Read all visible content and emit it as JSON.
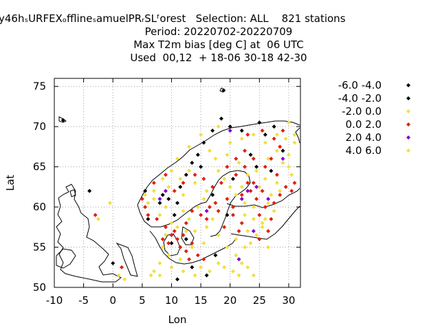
{
  "header": {
    "line1": "y46hₛURFEXₒfflineₛamuelPRᵣSLᶠorest   Selection: ALL    821 stations",
    "line2": "Period: 20220702-20220709",
    "line3": "Max T2m bias [deg C] at  06 UTC",
    "line4": "Used  00,12  + 18-06 30-18 42-30"
  },
  "chart_data": {
    "type": "scatter",
    "xlabel": "Lon",
    "ylabel": "Lat",
    "xlim": [
      -10,
      32
    ],
    "ylim": [
      50,
      76
    ],
    "xticks": [
      -10,
      -5,
      0,
      5,
      10,
      15,
      20,
      25,
      30
    ],
    "yticks": [
      50,
      55,
      60,
      65,
      70,
      75
    ],
    "grid": true,
    "legend_position": "top-right outside",
    "series": [
      {
        "name": "-6.0 -4.0",
        "color": "#000000",
        "points": [
          [
            18.9,
            74.5
          ],
          [
            18.5,
            71.0
          ]
        ]
      },
      {
        "name": "-4.0 -2.0",
        "color": "#000000",
        "points": [
          [
            8.5,
            61.5
          ],
          [
            8.0,
            60.5
          ],
          [
            9.5,
            61.0
          ],
          [
            11.5,
            62.5
          ],
          [
            12.5,
            64.0
          ],
          [
            13.5,
            65.5
          ],
          [
            14.5,
            66.5
          ],
          [
            15.5,
            68.0
          ],
          [
            17.0,
            69.5
          ],
          [
            20.0,
            70.0
          ],
          [
            22.0,
            69.5
          ],
          [
            25.0,
            70.5
          ],
          [
            26.0,
            69.0
          ],
          [
            27.5,
            70.0
          ],
          [
            29.0,
            67.0
          ],
          [
            24.5,
            65.0
          ],
          [
            11.0,
            60.5
          ],
          [
            10.5,
            59.0
          ],
          [
            12.5,
            56.0
          ],
          [
            10.0,
            55.5
          ],
          [
            13.5,
            52.5
          ],
          [
            16.0,
            51.5
          ],
          [
            11.0,
            51.0
          ],
          [
            17.5,
            54.0
          ],
          [
            -8.5,
            70.8
          ],
          [
            0.0,
            53.0
          ],
          [
            -4.0,
            62.0
          ],
          [
            17.0,
            61.5
          ],
          [
            19.5,
            59.0
          ],
          [
            20.5,
            63.5
          ],
          [
            27.0,
            64.5
          ],
          [
            23.5,
            66.5
          ],
          [
            15.0,
            65.0
          ],
          [
            6.0,
            58.5
          ],
          [
            5.5,
            62.0
          ]
        ]
      },
      {
        "name": "-2.0 0.0",
        "color": "#f0e040",
        "points": [
          [
            7.0,
            62.0
          ],
          [
            8.5,
            63.5
          ],
          [
            10.0,
            64.5
          ],
          [
            11.0,
            66.0
          ],
          [
            13.0,
            67.5
          ],
          [
            15.0,
            69.0
          ],
          [
            18.0,
            70.0
          ],
          [
            20.0,
            68.0
          ],
          [
            22.0,
            68.5
          ],
          [
            24.0,
            69.0
          ],
          [
            26.0,
            68.0
          ],
          [
            28.0,
            69.0
          ],
          [
            30.0,
            70.5
          ],
          [
            31.0,
            69.0
          ],
          [
            29.0,
            65.5
          ],
          [
            30.5,
            64.0
          ],
          [
            28.5,
            62.0
          ],
          [
            26.5,
            60.5
          ],
          [
            24.0,
            60.0
          ],
          [
            22.5,
            60.5
          ],
          [
            21.0,
            61.5
          ],
          [
            20.0,
            62.5
          ],
          [
            19.0,
            63.5
          ],
          [
            18.0,
            64.5
          ],
          [
            17.5,
            66.0
          ],
          [
            16.5,
            67.0
          ],
          [
            19.5,
            66.5
          ],
          [
            21.5,
            65.5
          ],
          [
            23.0,
            64.0
          ],
          [
            25.0,
            62.5
          ],
          [
            26.0,
            63.5
          ],
          [
            27.0,
            61.5
          ],
          [
            17.0,
            58.5
          ],
          [
            16.0,
            57.5
          ],
          [
            14.0,
            57.0
          ],
          [
            13.0,
            58.5
          ],
          [
            12.0,
            59.5
          ],
          [
            8.0,
            59.0
          ],
          [
            6.0,
            60.5
          ],
          [
            5.5,
            61.5
          ],
          [
            7.0,
            61.0
          ],
          [
            9.0,
            60.0
          ],
          [
            10.0,
            58.0
          ],
          [
            9.0,
            56.5
          ],
          [
            8.5,
            55.0
          ],
          [
            9.5,
            54.0
          ],
          [
            8.0,
            53.0
          ],
          [
            7.0,
            52.0
          ],
          [
            6.5,
            51.5
          ],
          [
            8.0,
            51.5
          ],
          [
            10.0,
            52.5
          ],
          [
            11.5,
            53.5
          ],
          [
            12.0,
            52.0
          ],
          [
            14.0,
            51.5
          ],
          [
            15.0,
            52.5
          ],
          [
            16.5,
            52.0
          ],
          [
            18.0,
            53.0
          ],
          [
            19.0,
            52.5
          ],
          [
            20.5,
            52.0
          ],
          [
            21.0,
            54.0
          ],
          [
            22.0,
            53.0
          ],
          [
            23.0,
            52.5
          ],
          [
            24.0,
            51.5
          ],
          [
            21.5,
            51.5
          ],
          [
            19.5,
            55.0
          ],
          [
            21.0,
            56.0
          ],
          [
            23.0,
            57.0
          ],
          [
            24.5,
            56.5
          ],
          [
            25.5,
            57.5
          ],
          [
            26.0,
            58.5
          ],
          [
            24.0,
            58.5
          ],
          [
            22.5,
            59.0
          ],
          [
            1.0,
            51.5
          ],
          [
            2.0,
            51.0
          ],
          [
            -0.5,
            60.5
          ],
          [
            -2.5,
            58.5
          ],
          [
            14.5,
            60.0
          ],
          [
            15.5,
            61.0
          ],
          [
            16.0,
            62.0
          ],
          [
            14.0,
            63.0
          ],
          [
            12.0,
            61.5
          ],
          [
            13.0,
            64.5
          ],
          [
            11.5,
            63.5
          ],
          [
            9.5,
            62.5
          ],
          [
            22.0,
            62.5
          ],
          [
            24.5,
            64.5
          ],
          [
            26.5,
            66.0
          ],
          [
            28.0,
            67.0
          ],
          [
            30.0,
            66.5
          ],
          [
            31.0,
            68.0
          ],
          [
            29.5,
            68.5
          ],
          [
            18.0,
            56.5
          ],
          [
            15.5,
            55.5
          ],
          [
            13.5,
            55.0
          ],
          [
            11.0,
            57.5
          ],
          [
            12.5,
            57.0
          ]
        ]
      },
      {
        "name": "0.0 2.0",
        "color": "#e02010",
        "points": [
          [
            5.0,
            61.0
          ],
          [
            5.5,
            60.0
          ],
          [
            6.0,
            59.0
          ],
          [
            7.5,
            58.5
          ],
          [
            7.0,
            63.0
          ],
          [
            9.0,
            64.0
          ],
          [
            10.5,
            62.0
          ],
          [
            12.0,
            63.0
          ],
          [
            14.0,
            64.0
          ],
          [
            15.5,
            63.5
          ],
          [
            17.0,
            62.5
          ],
          [
            18.5,
            63.0
          ],
          [
            19.5,
            61.0
          ],
          [
            20.5,
            60.0
          ],
          [
            22.0,
            61.5
          ],
          [
            23.5,
            62.0
          ],
          [
            24.5,
            61.0
          ],
          [
            25.5,
            62.0
          ],
          [
            26.0,
            60.0
          ],
          [
            27.5,
            60.5
          ],
          [
            28.5,
            61.5
          ],
          [
            29.5,
            62.5
          ],
          [
            30.5,
            62.0
          ],
          [
            31.0,
            63.0
          ],
          [
            28.0,
            64.0
          ],
          [
            26.0,
            65.0
          ],
          [
            24.0,
            66.0
          ],
          [
            22.5,
            67.0
          ],
          [
            21.0,
            66.0
          ],
          [
            19.5,
            65.0
          ],
          [
            23.0,
            63.0
          ],
          [
            25.0,
            59.0
          ],
          [
            27.0,
            58.5
          ],
          [
            26.5,
            57.0
          ],
          [
            25.0,
            56.0
          ],
          [
            22.0,
            58.0
          ],
          [
            20.5,
            59.0
          ],
          [
            18.0,
            59.5
          ],
          [
            16.5,
            60.0
          ],
          [
            15.0,
            59.0
          ],
          [
            16.0,
            58.5
          ],
          [
            13.5,
            59.5
          ],
          [
            12.5,
            58.0
          ],
          [
            11.0,
            56.0
          ],
          [
            10.0,
            56.5
          ],
          [
            9.5,
            55.5
          ],
          [
            11.5,
            55.0
          ],
          [
            12.5,
            54.5
          ],
          [
            13.5,
            55.5
          ],
          [
            14.5,
            54.0
          ],
          [
            12.0,
            56.5
          ],
          [
            10.5,
            57.0
          ],
          [
            9.0,
            57.5
          ],
          [
            8.5,
            56.0
          ],
          [
            13.0,
            53.5
          ],
          [
            15.5,
            53.5
          ],
          [
            27.0,
            66.0
          ],
          [
            28.5,
            67.5
          ],
          [
            29.0,
            69.5
          ],
          [
            27.5,
            68.5
          ],
          [
            25.5,
            69.5
          ],
          [
            23.0,
            69.0
          ],
          [
            -3.0,
            59.0
          ],
          [
            1.5,
            52.5
          ],
          [
            21.5,
            57.0
          ],
          [
            19.0,
            57.5
          ],
          [
            17.5,
            60.5
          ],
          [
            21.0,
            64.0
          ],
          [
            22.5,
            65.0
          ],
          [
            24.0,
            63.0
          ]
        ]
      },
      {
        "name": "2.0 4.0",
        "color": "#8000d0",
        "points": [
          [
            20.0,
            69.5
          ],
          [
            29.0,
            66.0
          ],
          [
            24.5,
            62.5
          ],
          [
            23.0,
            62.0
          ],
          [
            22.0,
            61.0
          ],
          [
            26.5,
            61.0
          ],
          [
            24.0,
            57.0
          ],
          [
            16.0,
            59.5
          ],
          [
            21.5,
            53.5
          ],
          [
            9.0,
            62.0
          ],
          [
            8.0,
            61.0
          ]
        ]
      },
      {
        "name": "4.0 6.0",
        "color": "#f0e040",
        "points": [
          [
            30.0,
            65.0
          ],
          [
            28.0,
            63.0
          ],
          [
            27.5,
            59.5
          ],
          [
            25.5,
            58.0
          ],
          [
            23.5,
            55.5
          ],
          [
            26.5,
            55.0
          ],
          [
            22.5,
            55.0
          ]
        ]
      }
    ]
  }
}
